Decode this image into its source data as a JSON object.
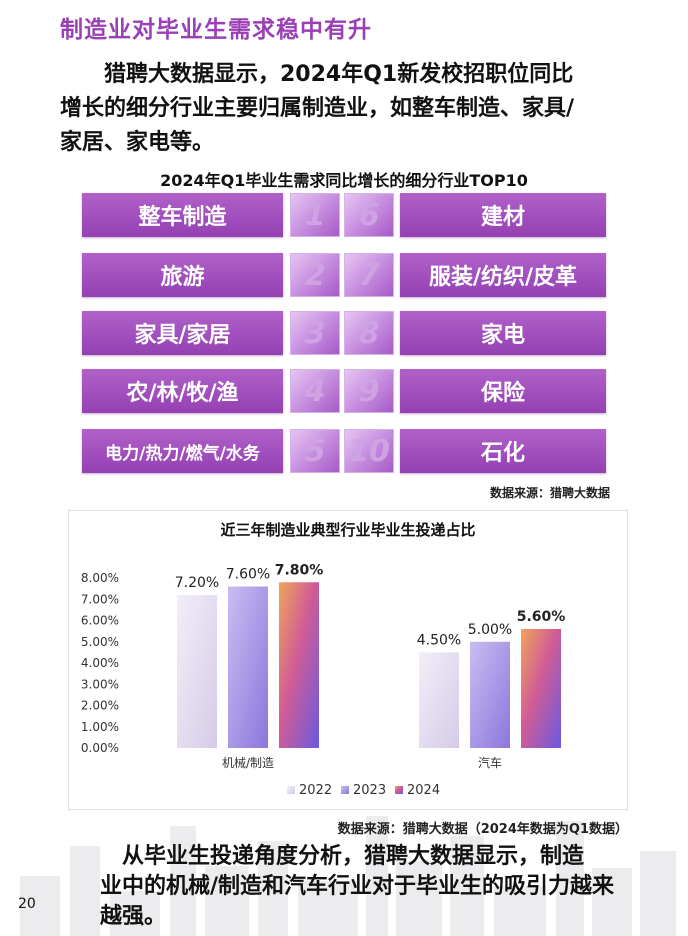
{
  "heading": "制造业对毕业生需求稳中有升",
  "intro": {
    "line1": "猎聘大数据显示，2024年Q1新发校招职位同比",
    "line2": "增长的细分行业主要归属制造业，如整车制造、家具/",
    "line3": "家居、家电等。"
  },
  "top10": {
    "title": "2024年Q1毕业生需求同比增长的细分行业TOP10",
    "left": [
      {
        "rank": "1",
        "label": "整车制造"
      },
      {
        "rank": "2",
        "label": "旅游"
      },
      {
        "rank": "3",
        "label": "家具/家居"
      },
      {
        "rank": "4",
        "label": "农/林/牧/渔"
      },
      {
        "rank": "5",
        "label": "电力/热力/燃气/水务"
      }
    ],
    "right": [
      {
        "rank": "6",
        "label": "建材"
      },
      {
        "rank": "7",
        "label": "服装/纺织/皮革"
      },
      {
        "rank": "8",
        "label": "家电"
      },
      {
        "rank": "9",
        "label": "保险"
      },
      {
        "rank": "10",
        "label": "石化"
      }
    ],
    "source": "数据来源：猎聘大数据"
  },
  "chart_data": {
    "type": "bar",
    "title": "近三年制造业典型行业毕业生投递占比",
    "categories": [
      "机械/制造",
      "汽车"
    ],
    "series": [
      {
        "name": "2022",
        "values": [
          7.2,
          4.5
        ],
        "labels": [
          "7.20%",
          "4.50%"
        ],
        "color": "#e4dcf0"
      },
      {
        "name": "2023",
        "values": [
          7.6,
          5.0
        ],
        "labels": [
          "7.60%",
          "5.00%"
        ],
        "color": "#a592e4"
      },
      {
        "name": "2024",
        "values": [
          7.8,
          5.6
        ],
        "labels": [
          "7.80%",
          "5.60%"
        ],
        "color": "#c04fa6"
      }
    ],
    "yticks": [
      "0.00%",
      "1.00%",
      "2.00%",
      "3.00%",
      "4.00%",
      "5.00%",
      "6.00%",
      "7.00%",
      "8.00%"
    ],
    "ylim": [
      0,
      8
    ],
    "legend": "bottom",
    "grid": false
  },
  "chart_source": "数据来源：猎聘大数据（2024年数据为Q1数据）",
  "outro": {
    "line1": "从毕业生投递角度分析，猎聘大数据显示，制造",
    "line2": "业中的机械/制造和汽车行业对于毕业生的吸引力越来",
    "line3": "越强。"
  },
  "page_number": "20",
  "colors": {
    "accent": "#9b3fb6",
    "tile": "#a150c0"
  }
}
